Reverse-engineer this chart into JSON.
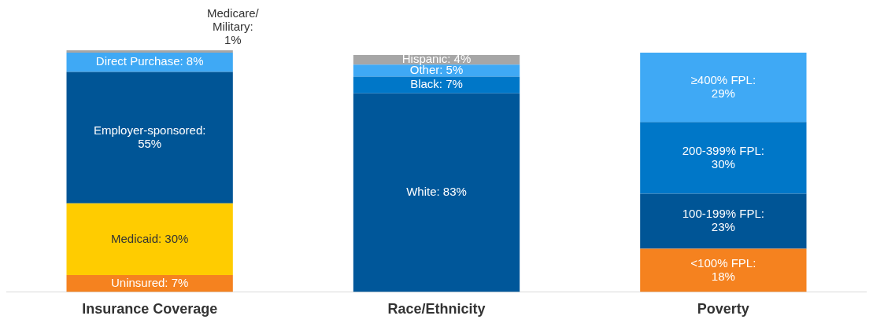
{
  "chart_data": {
    "type": "bar",
    "stacked": true,
    "grid": false,
    "legend": false,
    "categories": [
      "Insurance Coverage",
      "Race/Ethnicity",
      "Poverty"
    ],
    "series": [
      {
        "color": "#f5821f",
        "values": [
          7,
          null,
          null
        ],
        "value_labels": [
          "Uninsured: 7%",
          null,
          null
        ]
      },
      {
        "color": "#ffcc00",
        "values": [
          30,
          null,
          null
        ],
        "value_labels": [
          "Medicaid: 30%",
          null,
          null
        ]
      },
      {
        "color": "#005596",
        "values": [
          55,
          null,
          null
        ],
        "value_labels": [
          "Employer-sponsored:\n55%",
          null,
          null
        ]
      },
      {
        "color": "#3fa9f5",
        "values": [
          8,
          null,
          null
        ],
        "value_labels": [
          "Direct Purchase: 8%",
          null,
          null
        ]
      },
      {
        "color": "#a6a6a6",
        "values": [
          1,
          null,
          null
        ],
        "value_labels": [
          "Medicare/\nMilitary:\n1%",
          null,
          null
        ]
      },
      {
        "color": "#00579a",
        "values": [
          null,
          83,
          null
        ],
        "value_labels": [
          null,
          "White: 83%",
          null
        ]
      },
      {
        "color": "#0077c8",
        "values": [
          null,
          7,
          null
        ],
        "value_labels": [
          null,
          "Black: 7%",
          null
        ]
      },
      {
        "color": "#3fa9f5",
        "values": [
          null,
          5,
          null
        ],
        "value_labels": [
          null,
          "Other: 5%",
          null
        ]
      },
      {
        "color": "#a6a6a6",
        "values": [
          null,
          4,
          null
        ],
        "value_labels": [
          null,
          "Hispanic: 4%",
          null
        ]
      },
      {
        "color": "#f5821f",
        "values": [
          null,
          null,
          18
        ],
        "value_labels": [
          null,
          null,
          "<100% FPL:\n18%"
        ]
      },
      {
        "color": "#005596",
        "values": [
          null,
          null,
          23
        ],
        "value_labels": [
          null,
          null,
          "100-199% FPL:\n23%"
        ]
      },
      {
        "color": "#0077c8",
        "values": [
          null,
          null,
          30
        ],
        "value_labels": [
          null,
          null,
          "200-399% FPL:\n30%"
        ]
      },
      {
        "color": "#3fa9f5",
        "values": [
          null,
          null,
          29
        ],
        "value_labels": [
          null,
          null,
          "≥400% FPL:\n29%"
        ]
      }
    ]
  }
}
